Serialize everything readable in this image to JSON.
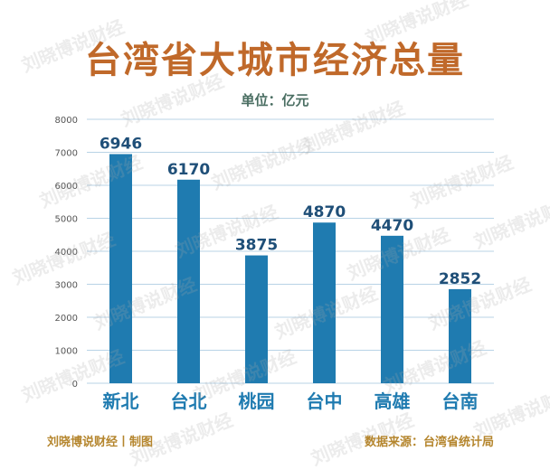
{
  "title": "台湾省大城市经济总量",
  "unit_label": "单位：亿元",
  "footer": {
    "left": "刘晓博说财经丨制图",
    "right": "数据来源：台湾省统计局"
  },
  "watermark_text": "刘晓博说财经",
  "colors": {
    "bar": "#1f7bb0",
    "title": "#c0692a",
    "category_label": "#1f7bb0",
    "value_label": "#1f4f78",
    "grid": "#b8d3e6",
    "footer": "#b5862e"
  },
  "chart_data": {
    "type": "bar",
    "categories": [
      "新北",
      "台北",
      "桃园",
      "台中",
      "高雄",
      "台南"
    ],
    "values": [
      6946,
      6170,
      3875,
      4870,
      4470,
      2852
    ],
    "ylim": [
      0,
      8000
    ],
    "yticks": [
      "0",
      "1000",
      "2000",
      "3000",
      "4000",
      "5000",
      "6000",
      "7000",
      "8000"
    ],
    "grid": true,
    "data_labels": [
      "6946",
      "6170",
      "3875",
      "4870",
      "4470",
      "2852"
    ]
  }
}
